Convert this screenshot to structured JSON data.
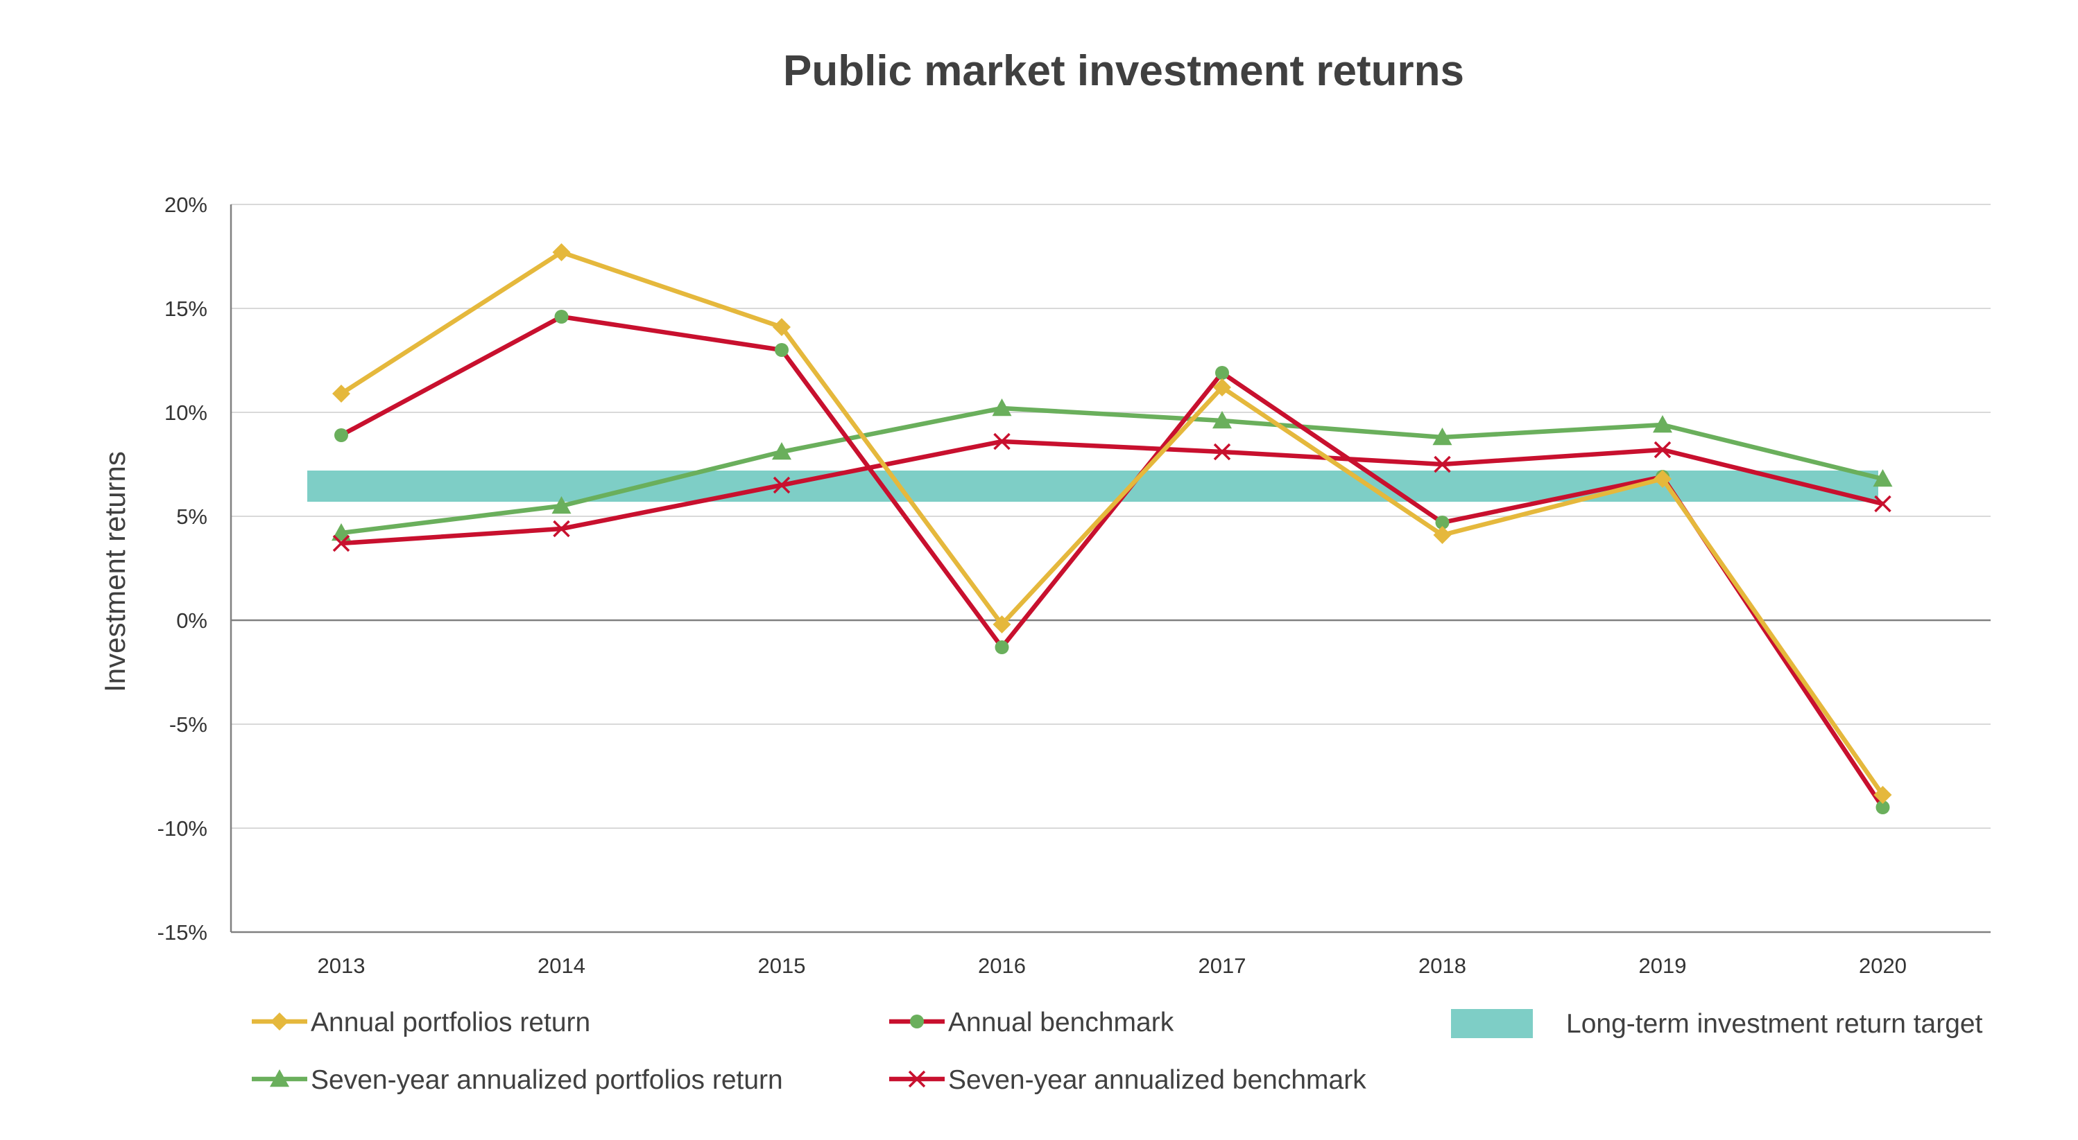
{
  "chart_data": {
    "type": "line",
    "title": "Public market investment returns",
    "xlabel": "",
    "ylabel": "Investment returns",
    "ylim": [
      -15,
      20
    ],
    "y_ticks": [
      20,
      15,
      10,
      5,
      0,
      -5,
      -10,
      -15
    ],
    "y_tick_labels": [
      "20%",
      "15%",
      "10%",
      "5%",
      "0%",
      "-5%",
      "-10%",
      "-15%"
    ],
    "categories": [
      "2013",
      "2014",
      "2015",
      "2016",
      "2017",
      "2018",
      "2019",
      "2020"
    ],
    "grid": true,
    "legend_placement": "bottom",
    "series": [
      {
        "name": "Annual portfolios return",
        "color": "#E5B83C",
        "marker": "diamond",
        "values": [
          10.9,
          17.7,
          14.1,
          -0.2,
          11.2,
          4.1,
          6.8,
          -8.4
        ]
      },
      {
        "name": "Annual benchmark",
        "color": "#C8102E",
        "marker": "circle",
        "marker_color": "#6AAF5C",
        "values": [
          8.9,
          14.6,
          13.0,
          -1.3,
          11.9,
          4.7,
          6.9,
          -9.0
        ]
      },
      {
        "name": "Seven-year annualized portfolios return",
        "color": "#6AAF5C",
        "marker": "triangle",
        "values": [
          4.2,
          5.5,
          8.1,
          10.2,
          9.6,
          8.8,
          9.4,
          6.8
        ]
      },
      {
        "name": "Seven-year annualized benchmark",
        "color": "#C8102E",
        "marker": "x",
        "values": [
          3.7,
          4.4,
          6.5,
          8.6,
          8.1,
          7.5,
          8.2,
          5.6
        ]
      }
    ],
    "target_band": {
      "name": "Long-term investment return target",
      "color": "#7ECEC6",
      "range": [
        5.7,
        7.2
      ]
    }
  }
}
